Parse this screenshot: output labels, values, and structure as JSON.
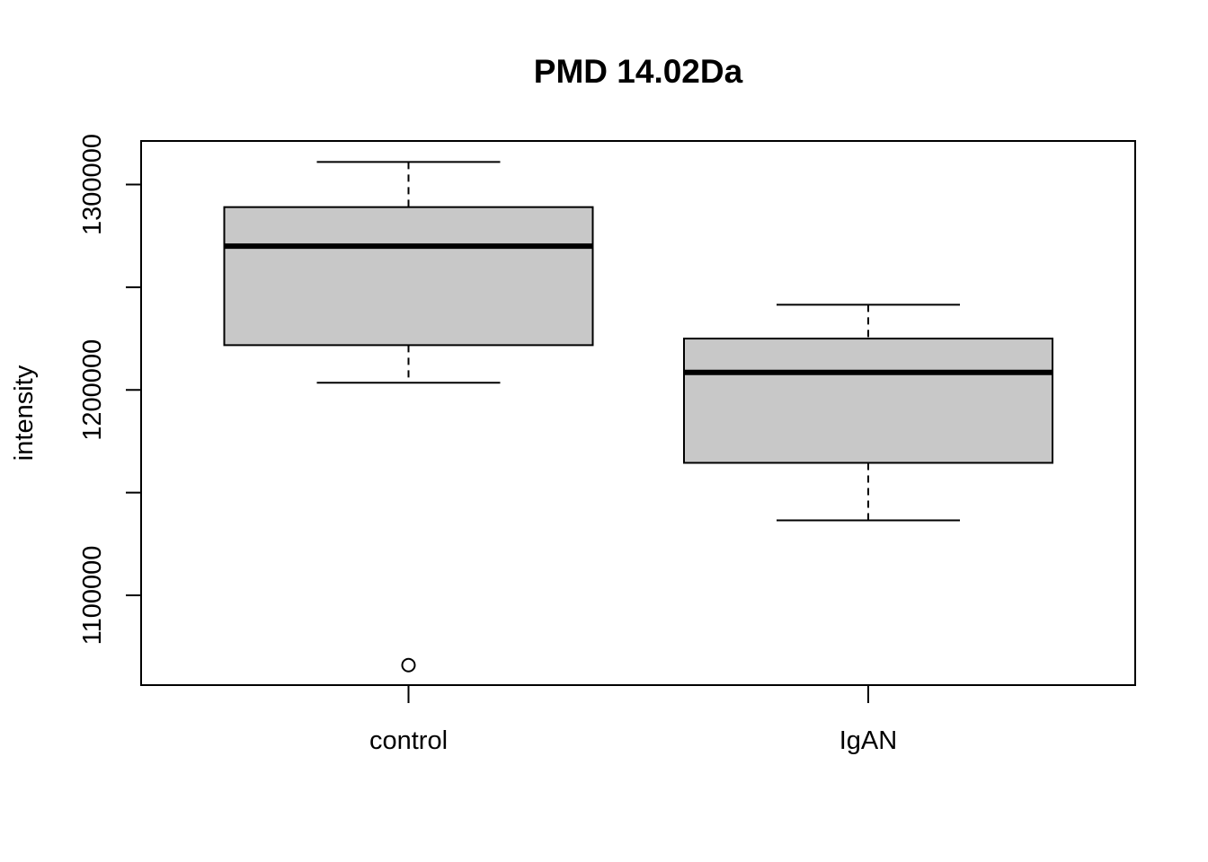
{
  "chart_data": {
    "type": "boxplot",
    "title": "PMD 14.02Da",
    "xlabel": "",
    "ylabel": "intensity",
    "ylim": [
      1056000,
      1321000
    ],
    "yticks": [
      1100000,
      1150000,
      1200000,
      1250000,
      1300000
    ],
    "ytick_labels": [
      "1100000",
      "",
      "1200000",
      "",
      "1300000"
    ],
    "categories": [
      "control",
      "IgAN"
    ],
    "box_fill": "#c8c8c8",
    "boxes": [
      {
        "name": "control",
        "whisker_low": 1203500,
        "q1": 1221800,
        "median": 1270000,
        "q3": 1289000,
        "whisker_high": 1311000,
        "outliers": [
          1066000
        ]
      },
      {
        "name": "IgAN",
        "whisker_low": 1136500,
        "q1": 1164500,
        "median": 1208500,
        "q3": 1225000,
        "whisker_high": 1241500,
        "outliers": []
      }
    ]
  }
}
